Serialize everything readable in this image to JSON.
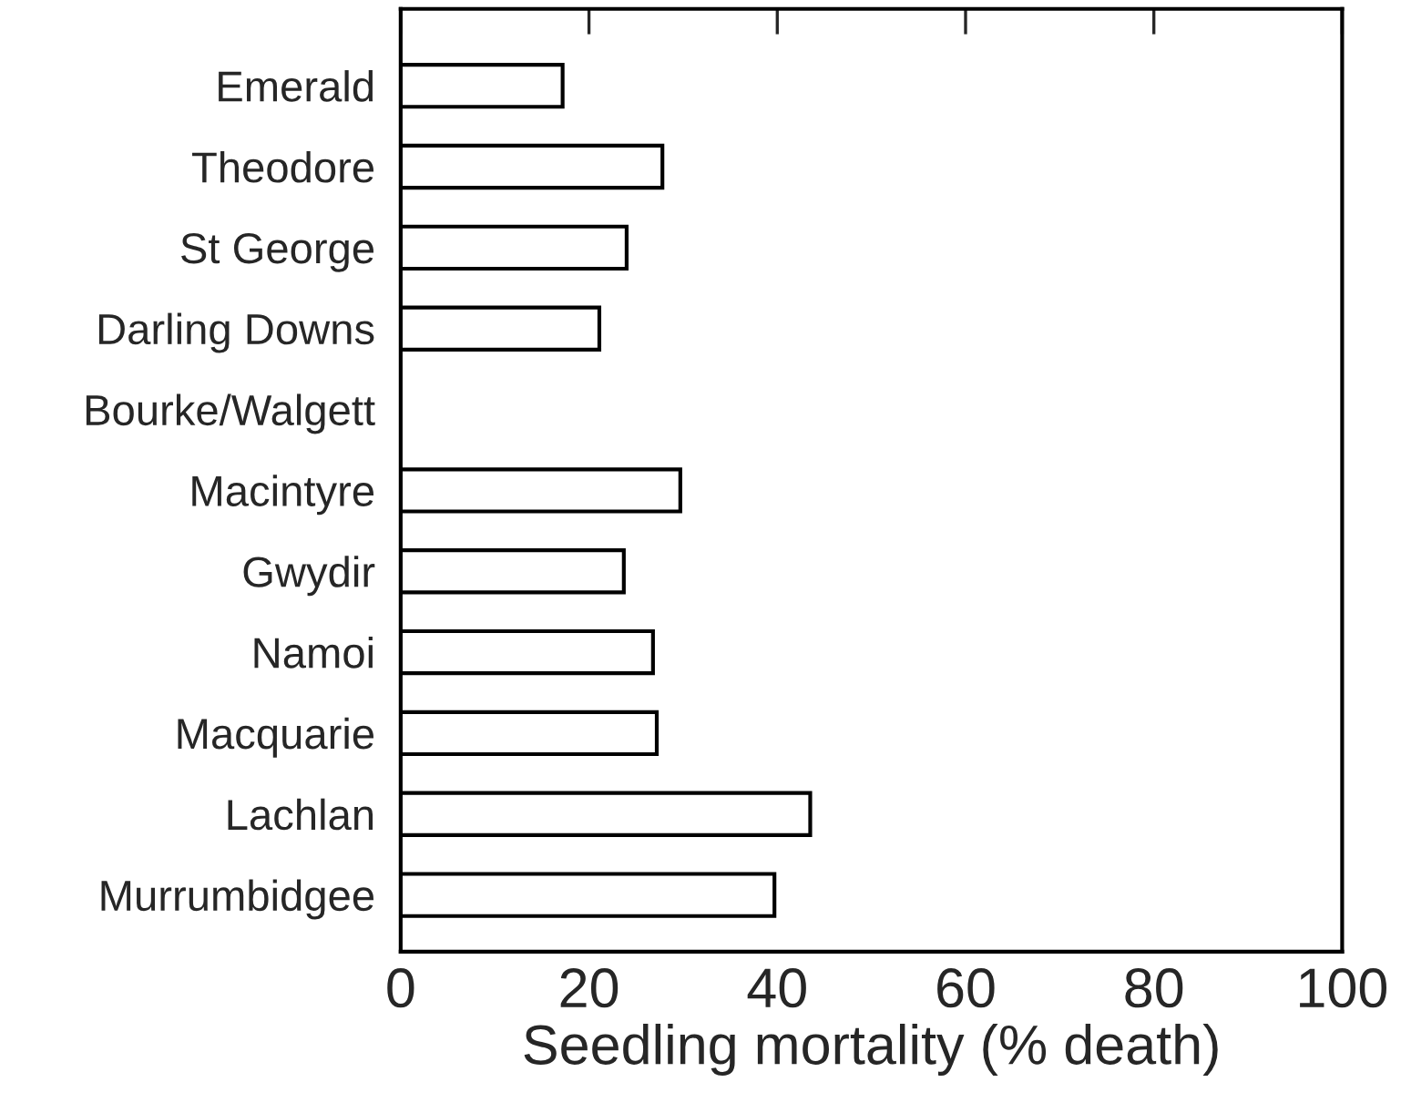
{
  "chart_data": {
    "type": "bar",
    "orientation": "horizontal",
    "xlabel": "Seedling mortality (% death)",
    "categories": [
      "Emerald",
      "Theodore",
      "St George",
      "Darling Downs",
      "Bourke/Walgett",
      "Macintyre",
      "Gwydir",
      "Namoi",
      "Macquarie",
      "Lachlan",
      "Murrumbidgee"
    ],
    "values": [
      17.2,
      27.8,
      24.0,
      21.1,
      null,
      29.7,
      23.7,
      26.8,
      27.2,
      43.5,
      39.7
    ],
    "color": "#ffffff",
    "xlim": [
      0,
      100
    ],
    "xticks": [
      0,
      20,
      40,
      60,
      80,
      100
    ],
    "grid": false,
    "legend": false
  }
}
